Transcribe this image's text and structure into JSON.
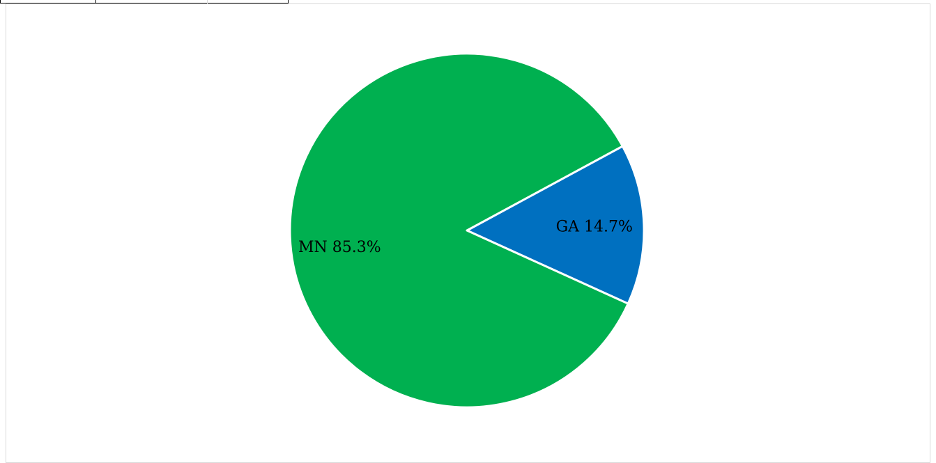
{
  "chart_data": {
    "type": "pie",
    "title": "",
    "categories": [
      "MN",
      "GA"
    ],
    "values": [
      85.3,
      14.7
    ],
    "unit": "%",
    "colors": {
      "MN": "#00b050",
      "GA": "#0070c0"
    },
    "data_labels": [
      "MN 85.3%",
      "GA 14.7%"
    ],
    "slice_border_color": "#ffffff",
    "legend": "none"
  }
}
